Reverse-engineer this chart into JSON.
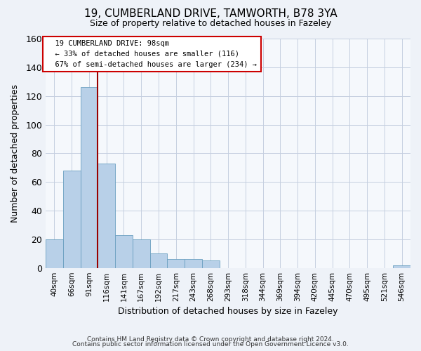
{
  "title": "19, CUMBERLAND DRIVE, TAMWORTH, B78 3YA",
  "subtitle": "Size of property relative to detached houses in Fazeley",
  "xlabel": "Distribution of detached houses by size in Fazeley",
  "ylabel": "Number of detached properties",
  "bar_labels": [
    "40sqm",
    "66sqm",
    "91sqm",
    "116sqm",
    "141sqm",
    "167sqm",
    "192sqm",
    "217sqm",
    "243sqm",
    "268sqm",
    "293sqm",
    "318sqm",
    "344sqm",
    "369sqm",
    "394sqm",
    "420sqm",
    "445sqm",
    "470sqm",
    "495sqm",
    "521sqm",
    "546sqm"
  ],
  "bar_values": [
    20,
    68,
    126,
    73,
    23,
    20,
    10,
    6,
    6,
    5,
    0,
    0,
    0,
    0,
    0,
    0,
    0,
    0,
    0,
    0,
    2
  ],
  "bar_color": "#b8d0e8",
  "bar_edge_color": "#6a9fc0",
  "ylim": [
    0,
    160
  ],
  "yticks": [
    0,
    20,
    40,
    60,
    80,
    100,
    120,
    140,
    160
  ],
  "property_label": "19 CUMBERLAND DRIVE: 98sqm",
  "annotation_line1": "← 33% of detached houses are smaller (116)",
  "annotation_line2": "67% of semi-detached houses are larger (234) →",
  "vline_x_index": 2.5,
  "vline_color": "#990000",
  "footer_line1": "Contains HM Land Registry data © Crown copyright and database right 2024.",
  "footer_line2": "Contains public sector information licensed under the Open Government Licence v3.0.",
  "background_color": "#eef2f8",
  "plot_bg_color": "#f5f8fc",
  "grid_color": "#c5cfe0"
}
